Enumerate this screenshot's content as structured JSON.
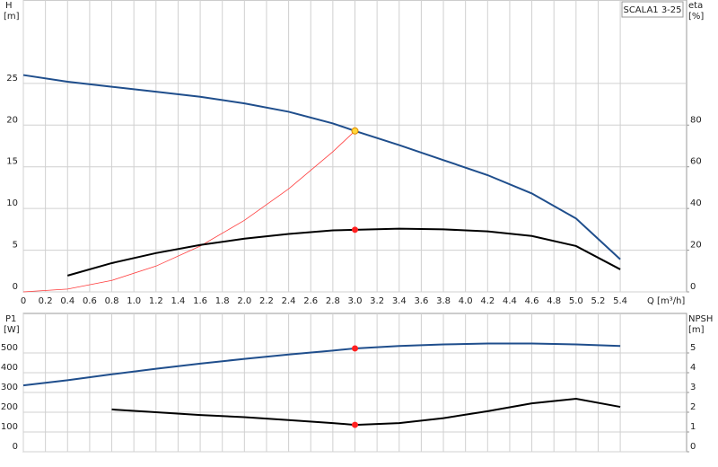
{
  "chart_data": [
    {
      "type": "line",
      "title": "SCALA1 3-25",
      "ylabel": "H",
      "yunit": "[m]",
      "y2label": "eta",
      "y2unit": "[%]",
      "xlabel": "Q [m³/h]",
      "x": [
        0,
        0.4,
        0.8,
        1.2,
        1.6,
        2.0,
        2.4,
        2.8,
        3.0,
        3.4,
        3.8,
        4.2,
        4.6,
        5.0,
        5.4
      ],
      "xlim": [
        0,
        6.0
      ],
      "xticks": [
        0,
        0.2,
        0.4,
        0.6,
        0.8,
        {
          "value": 1,
          "label": "1.0"
        },
        1.2,
        1.4,
        1.6,
        1.8,
        {
          "value": 2,
          "label": "2.0"
        },
        2.2,
        2.4,
        2.6,
        2.8,
        {
          "value": 3,
          "label": "3.0"
        },
        3.2,
        3.4,
        3.6,
        3.8,
        {
          "value": 4,
          "label": "4.0"
        },
        4.2,
        4.4,
        4.6,
        4.8,
        {
          "value": 5,
          "label": "5.0"
        },
        5.2,
        5.4
      ],
      "ylim": [
        0,
        35
      ],
      "yticks": [
        0,
        5,
        10,
        15,
        20,
        25
      ],
      "y2lim": [
        0,
        140
      ],
      "y2ticks": [
        0,
        20,
        40,
        60,
        80
      ],
      "grid": true,
      "series": [
        {
          "color": "#1f4e8c",
          "width": 2,
          "values": [
            26.0,
            25.2,
            24.6,
            24.0,
            23.4,
            22.6,
            21.6,
            20.2,
            19.3,
            17.6,
            15.8,
            14.0,
            11.8,
            8.8,
            3.9
          ]
        },
        {
          "color": "#ff3b3b",
          "width": 0.8,
          "values": [
            0,
            0.34,
            1.37,
            3.09,
            5.49,
            8.58,
            12.35,
            16.81,
            19.3,
            null,
            null,
            null,
            null,
            null,
            null
          ]
        },
        {
          "color": "#000000",
          "width": 2,
          "axis": "y2",
          "values": [
            null,
            7.8,
            13.8,
            18.6,
            22.5,
            25.5,
            27.8,
            29.5,
            29.8,
            30.3,
            30.0,
            29.0,
            26.8,
            22.0,
            10.8
          ]
        }
      ],
      "markers": [
        {
          "x": 3.0,
          "value": 19.3,
          "color": "#ffd83a"
        },
        {
          "x": 3.0,
          "value": 29.8,
          "axis": "y2",
          "color": "#ff2020"
        }
      ]
    },
    {
      "type": "line",
      "ylabel": "P1",
      "yunit": "[W]",
      "y2label": "NPSH",
      "y2unit": "[m]",
      "x": [
        0,
        0.4,
        0.8,
        1.2,
        1.6,
        2.0,
        2.4,
        2.8,
        3.0,
        3.4,
        3.8,
        4.2,
        4.6,
        5.0,
        5.4
      ],
      "xlim": [
        0,
        6.0
      ],
      "ylim": [
        0,
        700
      ],
      "yticks": [
        0,
        100,
        200,
        300,
        400,
        500
      ],
      "y2lim": [
        0,
        7
      ],
      "y2ticks": [
        0,
        1,
        2,
        3,
        4,
        5
      ],
      "grid": true,
      "series": [
        {
          "color": "#1f4e8c",
          "width": 2,
          "values": [
            336,
            362,
            392,
            420,
            446,
            470,
            492,
            512,
            523,
            535,
            543,
            548,
            548,
            543,
            535
          ]
        },
        {
          "color": "#000000",
          "width": 2,
          "axis": "y2",
          "values": [
            null,
            null,
            2.14,
            2.0,
            1.86,
            1.75,
            1.6,
            1.45,
            1.36,
            1.45,
            1.7,
            2.05,
            2.45,
            2.68,
            2.27
          ]
        }
      ],
      "markers": [
        {
          "x": 3.0,
          "value": 523,
          "color": "#ff2020"
        },
        {
          "x": 3.0,
          "value": 1.36,
          "axis": "y2",
          "color": "#ff2020"
        }
      ]
    }
  ]
}
